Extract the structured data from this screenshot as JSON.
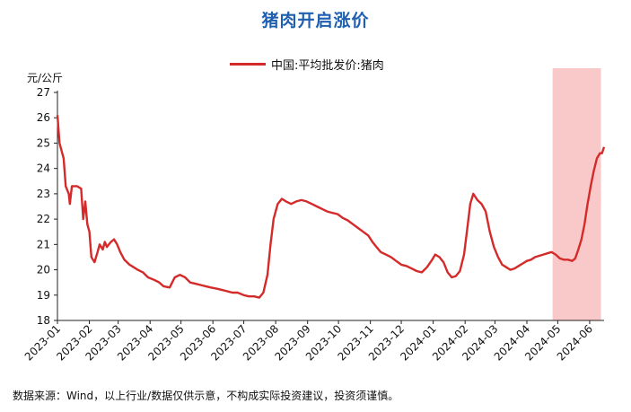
{
  "chart_data": {
    "type": "line",
    "title": "猪肉开启涨价",
    "ylabel": "元/公斤",
    "ylim": [
      18,
      27
    ],
    "yticks": [
      18,
      19,
      20,
      21,
      22,
      23,
      24,
      25,
      26,
      27
    ],
    "xlim": [
      "2023-01-01",
      "2024-06-15"
    ],
    "xticks": [
      "2023-01",
      "2023-02",
      "2023-03",
      "2023-04",
      "2023-05",
      "2023-06",
      "2023-07",
      "2023-08",
      "2023-09",
      "2023-10",
      "2023-11",
      "2023-12",
      "2024-01",
      "2024-02",
      "2024-03",
      "2024-04",
      "2024-05",
      "2024-06"
    ],
    "grid": false,
    "legend_position": "top-center",
    "highlight": {
      "from": "2024-04-26",
      "to": "2024-06-12",
      "color": "#f9c9c9"
    },
    "series": [
      {
        "name": "中国:平均批发价:猪肉",
        "color": "#d42a2a",
        "points": [
          [
            "2023-01-01",
            26.1
          ],
          [
            "2023-01-03",
            25.0
          ],
          [
            "2023-01-05",
            24.7
          ],
          [
            "2023-01-07",
            24.4
          ],
          [
            "2023-01-09",
            23.3
          ],
          [
            "2023-01-12",
            23.0
          ],
          [
            "2023-01-13",
            22.6
          ],
          [
            "2023-01-15",
            23.3
          ],
          [
            "2023-01-20",
            23.3
          ],
          [
            "2023-01-24",
            23.2
          ],
          [
            "2023-01-26",
            22.0
          ],
          [
            "2023-01-28",
            22.7
          ],
          [
            "2023-01-30",
            21.8
          ],
          [
            "2023-02-01",
            21.5
          ],
          [
            "2023-02-03",
            20.5
          ],
          [
            "2023-02-06",
            20.3
          ],
          [
            "2023-02-09",
            20.7
          ],
          [
            "2023-02-11",
            21.0
          ],
          [
            "2023-02-14",
            20.8
          ],
          [
            "2023-02-16",
            21.1
          ],
          [
            "2023-02-18",
            20.9
          ],
          [
            "2023-02-20",
            21.0
          ],
          [
            "2023-02-22",
            21.1
          ],
          [
            "2023-02-25",
            21.2
          ],
          [
            "2023-02-28",
            21.0
          ],
          [
            "2023-03-03",
            20.7
          ],
          [
            "2023-03-07",
            20.4
          ],
          [
            "2023-03-12",
            20.2
          ],
          [
            "2023-03-16",
            20.1
          ],
          [
            "2023-03-20",
            20.0
          ],
          [
            "2023-03-25",
            19.9
          ],
          [
            "2023-03-30",
            19.7
          ],
          [
            "2023-04-05",
            19.6
          ],
          [
            "2023-04-10",
            19.5
          ],
          [
            "2023-04-14",
            19.35
          ],
          [
            "2023-04-20",
            19.3
          ],
          [
            "2023-04-25",
            19.7
          ],
          [
            "2023-04-30",
            19.8
          ],
          [
            "2023-05-05",
            19.7
          ],
          [
            "2023-05-10",
            19.5
          ],
          [
            "2023-05-15",
            19.45
          ],
          [
            "2023-05-20",
            19.4
          ],
          [
            "2023-05-25",
            19.35
          ],
          [
            "2023-05-30",
            19.3
          ],
          [
            "2023-06-05",
            19.25
          ],
          [
            "2023-06-10",
            19.2
          ],
          [
            "2023-06-15",
            19.15
          ],
          [
            "2023-06-20",
            19.1
          ],
          [
            "2023-06-25",
            19.1
          ],
          [
            "2023-07-01",
            19.0
          ],
          [
            "2023-07-06",
            18.95
          ],
          [
            "2023-07-11",
            18.95
          ],
          [
            "2023-07-16",
            18.9
          ],
          [
            "2023-07-20",
            19.1
          ],
          [
            "2023-07-24",
            19.8
          ],
          [
            "2023-07-27",
            21.0
          ],
          [
            "2023-07-30",
            22.0
          ],
          [
            "2023-08-03",
            22.6
          ],
          [
            "2023-08-07",
            22.8
          ],
          [
            "2023-08-11",
            22.7
          ],
          [
            "2023-08-16",
            22.6
          ],
          [
            "2023-08-21",
            22.7
          ],
          [
            "2023-08-26",
            22.75
          ],
          [
            "2023-08-31",
            22.7
          ],
          [
            "2023-09-05",
            22.6
          ],
          [
            "2023-09-10",
            22.5
          ],
          [
            "2023-09-15",
            22.4
          ],
          [
            "2023-09-20",
            22.3
          ],
          [
            "2023-09-25",
            22.25
          ],
          [
            "2023-09-30",
            22.2
          ],
          [
            "2023-10-05",
            22.05
          ],
          [
            "2023-10-10",
            21.95
          ],
          [
            "2023-10-15",
            21.8
          ],
          [
            "2023-10-20",
            21.65
          ],
          [
            "2023-10-25",
            21.5
          ],
          [
            "2023-10-30",
            21.35
          ],
          [
            "2023-11-03",
            21.1
          ],
          [
            "2023-11-07",
            20.9
          ],
          [
            "2023-11-11",
            20.7
          ],
          [
            "2023-11-16",
            20.6
          ],
          [
            "2023-11-21",
            20.5
          ],
          [
            "2023-11-26",
            20.35
          ],
          [
            "2023-12-01",
            20.2
          ],
          [
            "2023-12-06",
            20.15
          ],
          [
            "2023-12-11",
            20.05
          ],
          [
            "2023-12-16",
            19.95
          ],
          [
            "2023-12-21",
            19.9
          ],
          [
            "2023-12-26",
            20.1
          ],
          [
            "2023-12-31",
            20.4
          ],
          [
            "2024-01-03",
            20.6
          ],
          [
            "2024-01-07",
            20.5
          ],
          [
            "2024-01-11",
            20.3
          ],
          [
            "2024-01-15",
            19.9
          ],
          [
            "2024-01-19",
            19.7
          ],
          [
            "2024-01-23",
            19.75
          ],
          [
            "2024-01-27",
            19.95
          ],
          [
            "2024-01-31",
            20.6
          ],
          [
            "2024-02-03",
            21.6
          ],
          [
            "2024-02-06",
            22.6
          ],
          [
            "2024-02-09",
            23.0
          ],
          [
            "2024-02-13",
            22.75
          ],
          [
            "2024-02-17",
            22.6
          ],
          [
            "2024-02-21",
            22.3
          ],
          [
            "2024-02-25",
            21.5
          ],
          [
            "2024-02-29",
            20.9
          ],
          [
            "2024-03-04",
            20.5
          ],
          [
            "2024-03-08",
            20.2
          ],
          [
            "2024-03-12",
            20.1
          ],
          [
            "2024-03-16",
            20.0
          ],
          [
            "2024-03-20",
            20.05
          ],
          [
            "2024-03-24",
            20.15
          ],
          [
            "2024-03-28",
            20.25
          ],
          [
            "2024-04-01",
            20.35
          ],
          [
            "2024-04-05",
            20.4
          ],
          [
            "2024-04-09",
            20.5
          ],
          [
            "2024-04-13",
            20.55
          ],
          [
            "2024-04-17",
            20.6
          ],
          [
            "2024-04-21",
            20.65
          ],
          [
            "2024-04-25",
            20.7
          ],
          [
            "2024-04-29",
            20.6
          ],
          [
            "2024-05-03",
            20.45
          ],
          [
            "2024-05-07",
            20.4
          ],
          [
            "2024-05-11",
            20.4
          ],
          [
            "2024-05-15",
            20.35
          ],
          [
            "2024-05-18",
            20.45
          ],
          [
            "2024-05-21",
            20.8
          ],
          [
            "2024-05-24",
            21.2
          ],
          [
            "2024-05-27",
            21.8
          ],
          [
            "2024-05-30",
            22.6
          ],
          [
            "2024-06-02",
            23.3
          ],
          [
            "2024-06-05",
            23.9
          ],
          [
            "2024-06-08",
            24.4
          ],
          [
            "2024-06-11",
            24.6
          ],
          [
            "2024-06-13",
            24.6
          ],
          [
            "2024-06-15",
            24.85
          ]
        ]
      }
    ]
  },
  "source_note": "数据来源：Wind，以上行业/数据仅供示意，不构成实际投资建议，投资须谨慎。"
}
